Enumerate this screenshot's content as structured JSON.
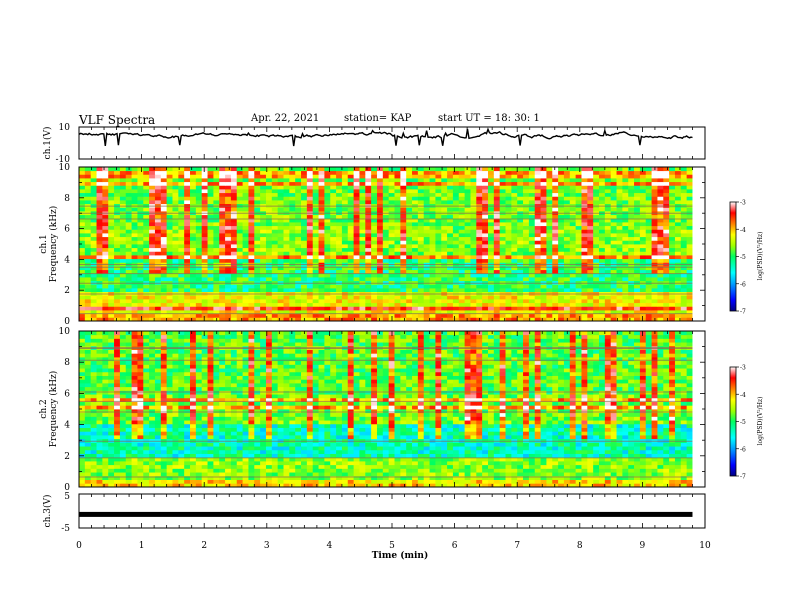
{
  "header": {
    "title": "VLF Spectra",
    "date": "Apr. 22, 2021",
    "station": "station= KAP",
    "start": "start  UT  =   18: 30: 1"
  },
  "colors": {
    "colormap": [
      "#000080",
      "#0000ff",
      "#00a0ff",
      "#00ffff",
      "#00ff60",
      "#a0ff00",
      "#ffff00",
      "#ff8000",
      "#ff0000",
      "#ffffff"
    ],
    "trace": "#000000"
  },
  "chart_data": [
    {
      "type": "line",
      "panel": "ch1_waveform",
      "ylabel": "ch.1(V)",
      "ylim": [
        -10,
        10
      ],
      "y_ticks": [
        "10",
        "-10"
      ],
      "xlim": [
        0,
        10
      ],
      "x_unit": "min",
      "approx_level_v": 4.8,
      "approx_swing_v": [
        -2,
        9
      ],
      "trace": "noisy signal, sampled continuously 0 to ~9.8 min"
    },
    {
      "type": "heatmap",
      "panel": "ch1_spectrogram",
      "ylabel": "ch.1\nFrequency (kHz)",
      "ylim": [
        0,
        10
      ],
      "y_ticks": [
        "0",
        "2",
        "4",
        "6",
        "8",
        "10"
      ],
      "xlim": [
        0,
        10
      ],
      "data_end_min": 9.8,
      "colorbar": {
        "label": "log(PSD)(V²/Hz)",
        "range": [
          -7,
          -3
        ],
        "ticks": [
          "-3",
          "-4",
          "-5",
          "-6",
          "-7"
        ]
      },
      "typical_log_psd": [
        {
          "f_khz": [
            0,
            0.5
          ],
          "value": -4.0
        },
        {
          "f_khz": [
            0.5,
            2
          ],
          "value": -4.4
        },
        {
          "f_khz": [
            2,
            4
          ],
          "value": -5.2
        },
        {
          "f_khz": [
            4,
            6
          ],
          "value": -4.8
        },
        {
          "f_khz": [
            6,
            10
          ],
          "value": -4.9
        }
      ]
    },
    {
      "type": "heatmap",
      "panel": "ch2_spectrogram",
      "ylabel": "ch.2\nFrequency (kHz)",
      "ylim": [
        0,
        10
      ],
      "y_ticks": [
        "0",
        "2",
        "4",
        "6",
        "8",
        "10"
      ],
      "xlim": [
        0,
        10
      ],
      "data_end_min": 9.8,
      "colorbar": {
        "label": "log(PSD)(V²/Hz)",
        "range": [
          -7,
          -3
        ],
        "ticks": [
          "-3",
          "-4",
          "-5",
          "-6",
          "-7"
        ]
      },
      "typical_log_psd": [
        {
          "f_khz": [
            0,
            0.5
          ],
          "value": -4.2
        },
        {
          "f_khz": [
            0.5,
            2
          ],
          "value": -4.8
        },
        {
          "f_khz": [
            2,
            4
          ],
          "value": -5.5
        },
        {
          "f_khz": [
            4,
            6
          ],
          "value": -4.9
        },
        {
          "f_khz": [
            6,
            10
          ],
          "value": -5.0
        }
      ]
    },
    {
      "type": "line",
      "panel": "ch3_waveform",
      "ylabel": "ch.3(V)",
      "ylim": [
        -5,
        5
      ],
      "y_ticks": [
        "5",
        "-5"
      ],
      "xlim": [
        0,
        10
      ],
      "approx_level_v": -1.0,
      "data_end_min": 9.8
    }
  ],
  "x_axis": {
    "label": "Time  (min)",
    "ticks": [
      "0",
      "1",
      "2",
      "3",
      "4",
      "5",
      "6",
      "7",
      "8",
      "9",
      "10"
    ]
  }
}
